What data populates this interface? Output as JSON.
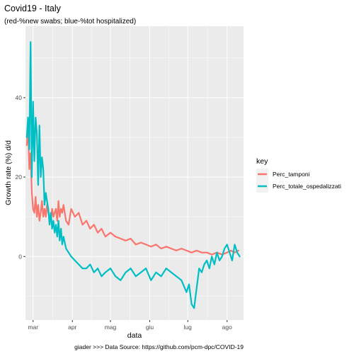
{
  "chart_data": {
    "type": "line",
    "title": "Covid19 - Italy",
    "subtitle": "(red-%new swabs; blue-%tot hospitalized)",
    "xlabel": "data",
    "ylabel": "Growth rate (%) d/d",
    "caption": "giader >>> Data Source: https://github.com/pcm-dpc/COVID-19",
    "xlim": [
      "2020-02-24",
      "2020-08-14"
    ],
    "ylim": [
      -16,
      58
    ],
    "x_ticks": [
      "2020-03-01",
      "2020-04-01",
      "2020-05-01",
      "2020-06-01",
      "2020-07-01",
      "2020-08-01"
    ],
    "x_tick_labels": [
      "mar",
      "apr",
      "mag",
      "giu",
      "lug",
      "ago"
    ],
    "y_ticks": [
      0,
      20,
      40
    ],
    "y_tick_labels": [
      "0",
      "20",
      "40"
    ],
    "grid": true,
    "legend": {
      "title": "key",
      "position": "right",
      "entries": [
        "Perc_tamponi",
        "Perc_totale_ospedalizzati"
      ]
    },
    "series": [
      {
        "name": "Perc_tamponi",
        "color": "#F8766D",
        "x": [
          "2020-02-25",
          "2020-02-26",
          "2020-02-27",
          "2020-02-28",
          "2020-02-29",
          "2020-03-01",
          "2020-03-02",
          "2020-03-03",
          "2020-03-04",
          "2020-03-05",
          "2020-03-06",
          "2020-03-07",
          "2020-03-08",
          "2020-03-09",
          "2020-03-10",
          "2020-03-11",
          "2020-03-12",
          "2020-03-13",
          "2020-03-14",
          "2020-03-15",
          "2020-03-16",
          "2020-03-17",
          "2020-03-18",
          "2020-03-19",
          "2020-03-20",
          "2020-03-21",
          "2020-03-22",
          "2020-03-23",
          "2020-03-24",
          "2020-03-25",
          "2020-03-27",
          "2020-03-29",
          "2020-03-31",
          "2020-04-03",
          "2020-04-06",
          "2020-04-09",
          "2020-04-12",
          "2020-04-15",
          "2020-04-18",
          "2020-04-21",
          "2020-04-24",
          "2020-04-27",
          "2020-05-01",
          "2020-05-05",
          "2020-05-09",
          "2020-05-13",
          "2020-05-17",
          "2020-05-21",
          "2020-05-25",
          "2020-05-29",
          "2020-06-02",
          "2020-06-06",
          "2020-06-10",
          "2020-06-14",
          "2020-06-18",
          "2020-06-22",
          "2020-06-26",
          "2020-06-30",
          "2020-07-04",
          "2020-07-08",
          "2020-07-12",
          "2020-07-16",
          "2020-07-20",
          "2020-07-24",
          "2020-07-28",
          "2020-08-01",
          "2020-08-04",
          "2020-08-07",
          "2020-08-10"
        ],
        "y": [
          28,
          33,
          22,
          26,
          16,
          12,
          11,
          15,
          10,
          13,
          9,
          11,
          14,
          10,
          12,
          10,
          13,
          11,
          10,
          9,
          12,
          10,
          11,
          12,
          9,
          14,
          10,
          12,
          11,
          13,
          9,
          8,
          12,
          10,
          11,
          8,
          9,
          7,
          8,
          6,
          7,
          5,
          6,
          5,
          4.5,
          4,
          4.5,
          3,
          3.5,
          3,
          2.5,
          3,
          2,
          2.5,
          2,
          1.5,
          2,
          1.5,
          1,
          1.5,
          1,
          1,
          0.5,
          1,
          0.5,
          1,
          1.5,
          1,
          1.5
        ]
      },
      {
        "name": "Perc_totale_ospedalizzati",
        "color": "#00BFC4",
        "x": [
          "2020-02-25",
          "2020-02-26",
          "2020-02-27",
          "2020-02-28",
          "2020-02-29",
          "2020-03-01",
          "2020-03-02",
          "2020-03-03",
          "2020-03-04",
          "2020-03-05",
          "2020-03-06",
          "2020-03-07",
          "2020-03-08",
          "2020-03-09",
          "2020-03-10",
          "2020-03-11",
          "2020-03-12",
          "2020-03-13",
          "2020-03-14",
          "2020-03-15",
          "2020-03-16",
          "2020-03-17",
          "2020-03-18",
          "2020-03-19",
          "2020-03-20",
          "2020-03-21",
          "2020-03-22",
          "2020-03-23",
          "2020-03-24",
          "2020-03-25",
          "2020-03-27",
          "2020-03-29",
          "2020-03-31",
          "2020-04-03",
          "2020-04-06",
          "2020-04-09",
          "2020-04-12",
          "2020-04-15",
          "2020-04-18",
          "2020-04-21",
          "2020-04-24",
          "2020-04-27",
          "2020-05-01",
          "2020-05-05",
          "2020-05-09",
          "2020-05-13",
          "2020-05-17",
          "2020-05-21",
          "2020-05-25",
          "2020-05-29",
          "2020-06-02",
          "2020-06-06",
          "2020-06-10",
          "2020-06-14",
          "2020-06-18",
          "2020-06-22",
          "2020-06-26",
          "2020-06-30",
          "2020-07-02",
          "2020-07-04",
          "2020-07-06",
          "2020-07-08",
          "2020-07-10",
          "2020-07-12",
          "2020-07-14",
          "2020-07-16",
          "2020-07-18",
          "2020-07-20",
          "2020-07-22",
          "2020-07-24",
          "2020-07-26",
          "2020-07-28",
          "2020-07-30",
          "2020-08-01",
          "2020-08-03",
          "2020-08-05",
          "2020-08-07",
          "2020-08-09",
          "2020-08-11"
        ],
        "y": [
          30,
          35,
          27,
          54,
          20,
          39,
          24,
          35,
          31,
          18,
          33,
          20,
          25,
          22,
          13,
          16,
          14,
          12,
          8,
          11,
          7,
          9,
          6,
          8,
          5,
          9,
          4,
          7,
          3,
          5,
          2,
          1,
          0,
          -1,
          -2,
          -3,
          -3,
          -2,
          -4,
          -3,
          -5,
          -4,
          -3,
          -5,
          -6,
          -4,
          -3,
          -5,
          -4,
          -3,
          -6,
          -4,
          -5,
          -3,
          -4,
          -5,
          -6,
          -9,
          -7,
          -12,
          -13,
          -8,
          -3,
          -4,
          -2,
          -1,
          -3,
          0,
          -2,
          1,
          -1,
          0,
          2,
          3,
          1,
          -1,
          3,
          1,
          0
        ]
      }
    ]
  }
}
